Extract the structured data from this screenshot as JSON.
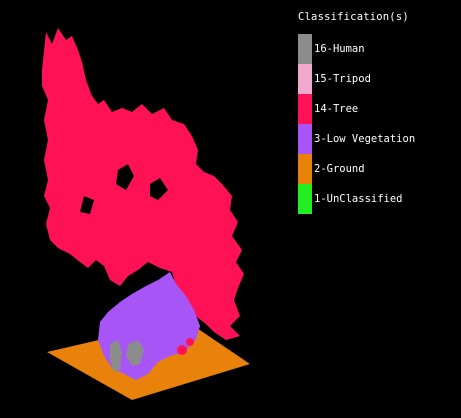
{
  "legend": {
    "title": "Classification(s)",
    "items": [
      {
        "label": "16-Human",
        "color": "#8c8c8c"
      },
      {
        "label": "15-Tripod",
        "color": "#f0a8cc"
      },
      {
        "label": "14-Tree",
        "color": "#ff1155"
      },
      {
        "label": "3-Low Vegetation",
        "color": "#a855f7"
      },
      {
        "label": "2-Ground",
        "color": "#e8820a"
      },
      {
        "label": "1-UnClassified",
        "color": "#22ee22"
      }
    ]
  },
  "viewport": {
    "background": "#000000",
    "colors": {
      "tree": "#ff1155",
      "low_vegetation": "#a855f7",
      "ground": "#e8820a",
      "human": "#8c8c8c"
    }
  }
}
